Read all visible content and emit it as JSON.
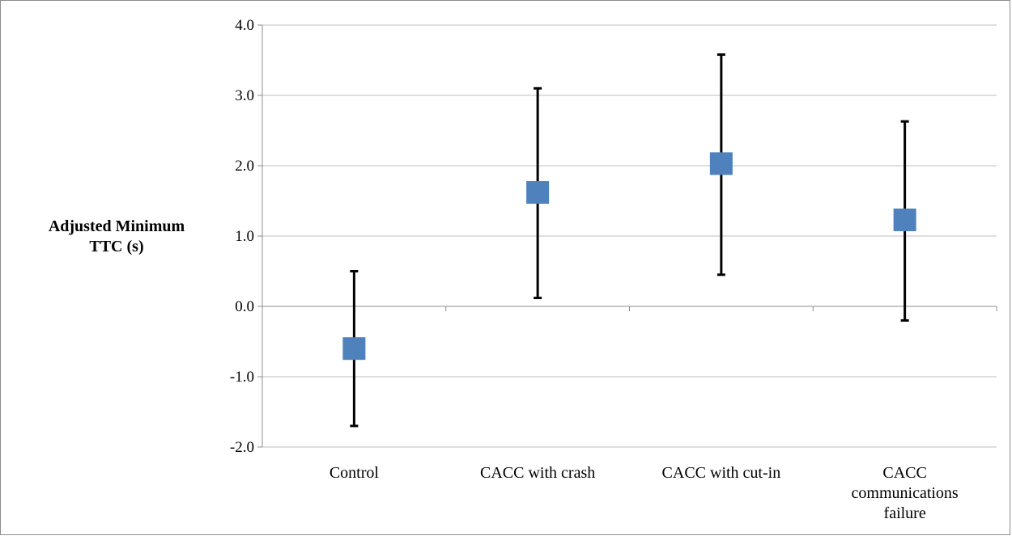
{
  "chart_data": {
    "type": "scatter",
    "title": "",
    "ylabel": "Adjusted Minimum TTC (s)",
    "ylabel_lines": [
      "Adjusted Minimum",
      "TTC (s)"
    ],
    "xlabel": "",
    "ylim": [
      -2.0,
      4.0
    ],
    "yticks": [
      -2.0,
      -1.0,
      0.0,
      1.0,
      2.0,
      3.0,
      4.0
    ],
    "ytick_labels": [
      "-2.0",
      "-1.0",
      "0.0",
      "1.0",
      "2.0",
      "3.0",
      "4.0"
    ],
    "grid": true,
    "legend": "none",
    "marker": "square",
    "marker_color": "#4f81bd",
    "errorbar_color": "#000000",
    "categories": [
      [
        "Control"
      ],
      [
        "CACC with crash"
      ],
      [
        "CACC with cut-in"
      ],
      [
        "CACC",
        "communications",
        "failure"
      ]
    ],
    "values": [
      -0.6,
      1.62,
      2.03,
      1.23
    ],
    "error_low": [
      -1.7,
      0.12,
      0.45,
      -0.2
    ],
    "error_high": [
      0.5,
      3.1,
      3.58,
      2.63
    ]
  }
}
